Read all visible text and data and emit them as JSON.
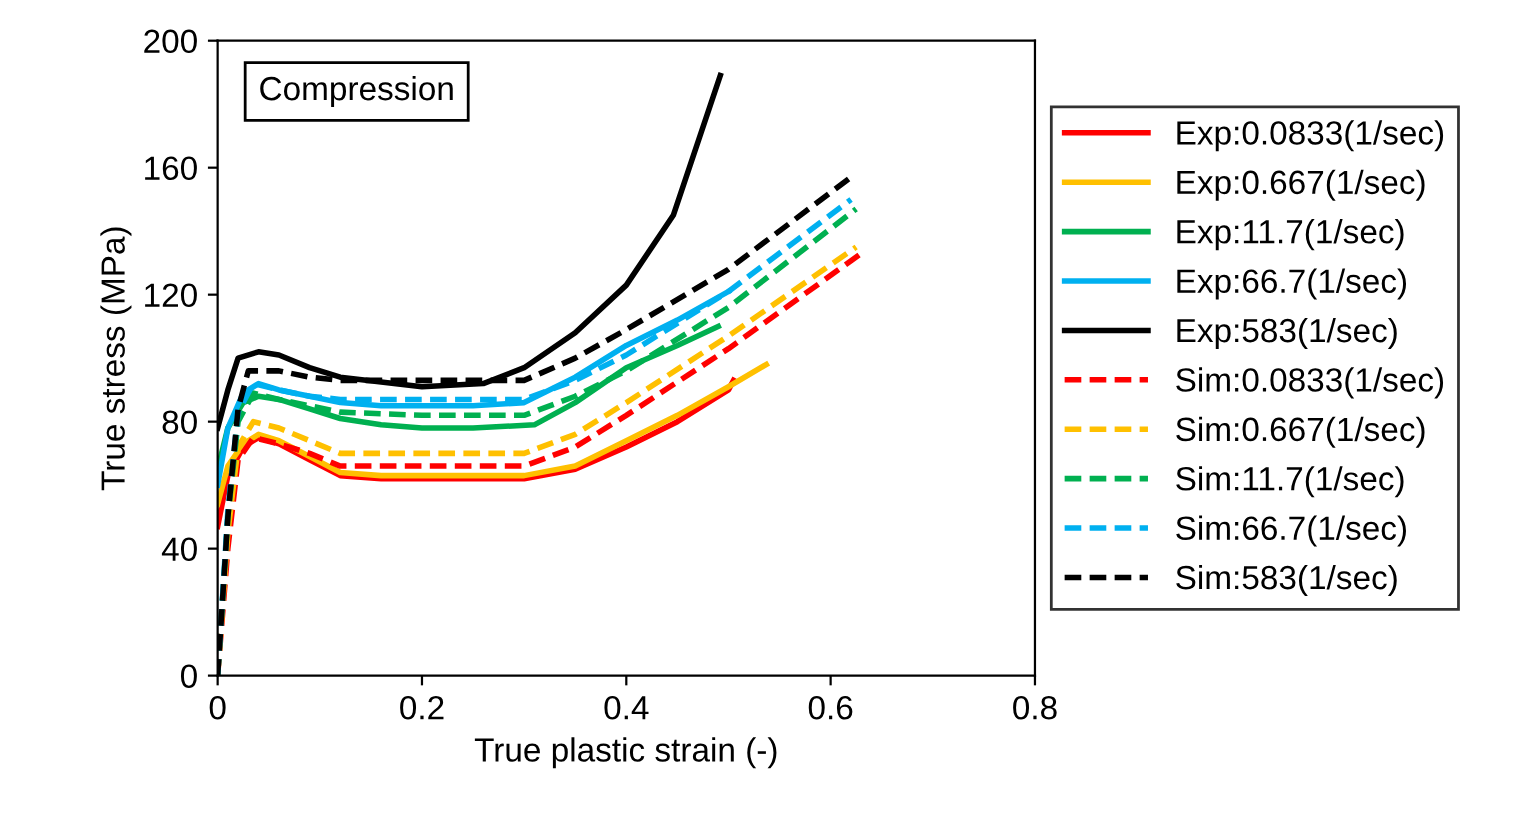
{
  "chart_data": {
    "type": "line",
    "xlabel": "True plastic strain (-)",
    "ylabel": "True stress (MPa)",
    "annotations": [
      "Compression"
    ],
    "xlim": [
      0,
      0.8
    ],
    "ylim": [
      0,
      200
    ],
    "xticks": [
      0,
      0.2,
      0.4,
      0.6,
      0.8
    ],
    "yticks": [
      0,
      40,
      80,
      120,
      160,
      200
    ],
    "grid": false,
    "legend": "right",
    "marker": "none",
    "series": [
      {
        "name": "Exp:0.0833(1/sec)",
        "color": "#ff0000",
        "line_style": "solid",
        "x": [
          0,
          0.01,
          0.025,
          0.04,
          0.06,
          0.09,
          0.12,
          0.16,
          0.2,
          0.3,
          0.35,
          0.4,
          0.45,
          0.5,
          0.505
        ],
        "values": [
          47,
          63,
          72,
          75,
          73,
          68,
          63,
          62,
          62,
          62,
          65,
          72,
          80,
          90,
          93
        ]
      },
      {
        "name": "Exp:0.667(1/sec)",
        "color": "#ffc000",
        "line_style": "solid",
        "x": [
          0,
          0.01,
          0.025,
          0.04,
          0.06,
          0.09,
          0.12,
          0.16,
          0.2,
          0.3,
          0.35,
          0.4,
          0.45,
          0.5,
          0.537
        ],
        "values": [
          54,
          66,
          73,
          76,
          74,
          69,
          64,
          63,
          63,
          63,
          66,
          74,
          82,
          91,
          98
        ]
      },
      {
        "name": "Exp:11.7(1/sec)",
        "color": "#00b050",
        "line_style": "solid",
        "x": [
          0,
          0.01,
          0.025,
          0.04,
          0.06,
          0.09,
          0.12,
          0.16,
          0.2,
          0.25,
          0.31,
          0.35,
          0.4,
          0.45,
          0.49
        ],
        "values": [
          65,
          78,
          86,
          88,
          87,
          84,
          81,
          79,
          78,
          78,
          79,
          86,
          97,
          104,
          110
        ]
      },
      {
        "name": "Exp:66.7(1/sec)",
        "color": "#00b0f0",
        "line_style": "solid",
        "x": [
          0,
          0.01,
          0.025,
          0.04,
          0.06,
          0.09,
          0.12,
          0.16,
          0.2,
          0.25,
          0.3,
          0.35,
          0.4,
          0.45,
          0.5
        ],
        "values": [
          60,
          78,
          89,
          92,
          90,
          88,
          86,
          85,
          85,
          85,
          86,
          94,
          104,
          112,
          121
        ]
      },
      {
        "name": "Exp:583(1/sec)",
        "color": "#000000",
        "line_style": "solid",
        "x": [
          0,
          0.01,
          0.02,
          0.04,
          0.06,
          0.09,
          0.12,
          0.2,
          0.26,
          0.3,
          0.35,
          0.4,
          0.446,
          0.492
        ],
        "values": [
          78,
          90,
          100,
          102,
          101,
          97,
          94,
          91,
          92,
          97,
          108,
          123,
          145,
          189
        ]
      },
      {
        "name": "Sim:0.0833(1/sec)",
        "color": "#ff0000",
        "line_style": "dashed",
        "x": [
          0,
          0.01,
          0.02,
          0.035,
          0.06,
          0.09,
          0.12,
          0.2,
          0.3,
          0.35,
          0.4,
          0.5,
          0.63
        ],
        "values": [
          0,
          40,
          68,
          75,
          73,
          70,
          66,
          66,
          66,
          72,
          82,
          103,
          133
        ]
      },
      {
        "name": "Sim:0.667(1/sec)",
        "color": "#ffc000",
        "line_style": "dashed",
        "x": [
          0,
          0.01,
          0.02,
          0.035,
          0.06,
          0.09,
          0.12,
          0.2,
          0.3,
          0.35,
          0.4,
          0.5,
          0.625
        ],
        "values": [
          0,
          45,
          72,
          80,
          78,
          74,
          70,
          70,
          70,
          76,
          86,
          107,
          135
        ]
      },
      {
        "name": "Sim:11.7(1/sec)",
        "color": "#00b050",
        "line_style": "dashed",
        "x": [
          0,
          0.01,
          0.02,
          0.035,
          0.06,
          0.09,
          0.12,
          0.2,
          0.3,
          0.35,
          0.4,
          0.5,
          0.625
        ],
        "values": [
          0,
          50,
          80,
          89,
          87,
          85,
          83,
          82,
          82,
          88,
          96,
          116,
          147
        ]
      },
      {
        "name": "Sim:66.7(1/sec)",
        "color": "#00b0f0",
        "line_style": "dashed",
        "x": [
          0,
          0.01,
          0.02,
          0.035,
          0.06,
          0.09,
          0.12,
          0.2,
          0.3,
          0.35,
          0.4,
          0.5,
          0.62
        ],
        "values": [
          0,
          52,
          83,
          92,
          90,
          88,
          87,
          87,
          87,
          93,
          101,
          121,
          150
        ]
      },
      {
        "name": "Sim:583(1/sec)",
        "color": "#000000",
        "line_style": "dashed",
        "x": [
          0,
          0.01,
          0.02,
          0.03,
          0.06,
          0.09,
          0.12,
          0.2,
          0.3,
          0.35,
          0.4,
          0.5,
          0.62
        ],
        "values": [
          0,
          50,
          84,
          96,
          96,
          94,
          93,
          93,
          93,
          100,
          109,
          128,
          157
        ]
      }
    ]
  }
}
